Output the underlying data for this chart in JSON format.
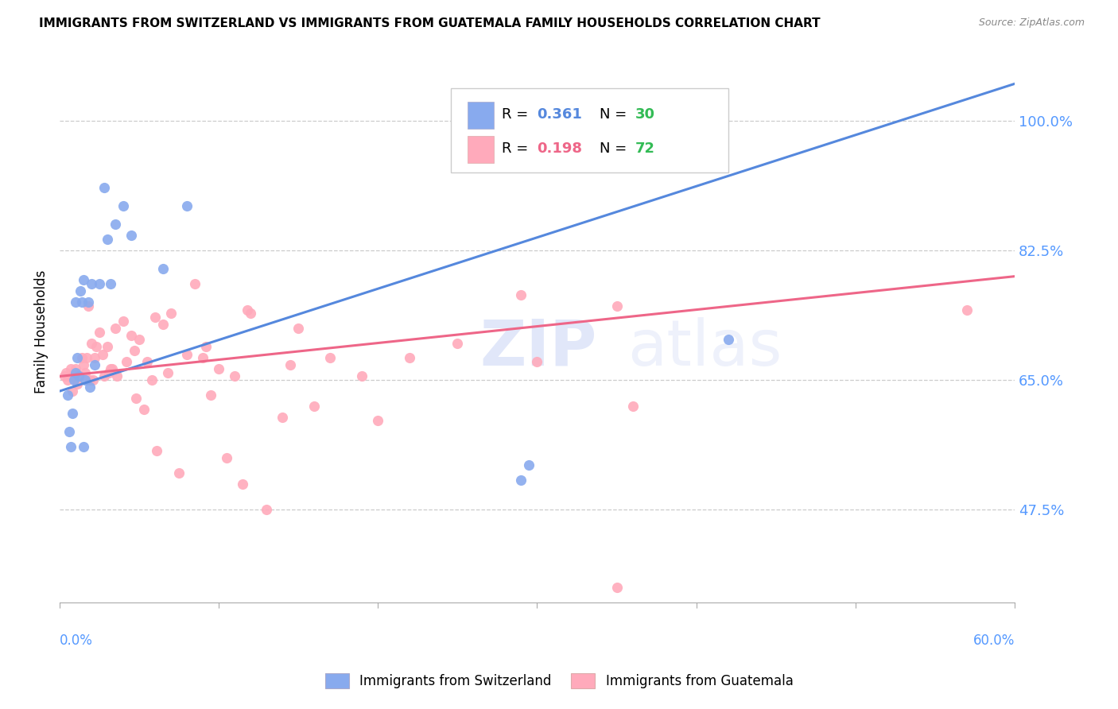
{
  "title": "IMMIGRANTS FROM SWITZERLAND VS IMMIGRANTS FROM GUATEMALA FAMILY HOUSEHOLDS CORRELATION CHART",
  "source": "Source: ZipAtlas.com",
  "ylabel": "Family Households",
  "yticks": [
    47.5,
    65.0,
    82.5,
    100.0
  ],
  "xlim": [
    0.0,
    60.0
  ],
  "ylim": [
    35.0,
    108.0
  ],
  "color_swiss": "#88AAEE",
  "color_swiss_line": "#5588DD",
  "color_guate": "#FFAABB",
  "color_guate_line": "#EE6688",
  "color_axis_labels": "#5599FF",
  "swiss_x": [
    0.5,
    0.6,
    0.7,
    0.8,
    0.9,
    1.0,
    1.0,
    1.1,
    1.2,
    1.3,
    1.4,
    1.5,
    1.5,
    1.6,
    1.8,
    1.9,
    2.0,
    2.2,
    2.5,
    2.8,
    3.0,
    3.2,
    3.5,
    4.0,
    4.5,
    6.5,
    8.0,
    29.0,
    29.5,
    42.0
  ],
  "swiss_y": [
    63.0,
    58.0,
    56.0,
    60.5,
    65.0,
    66.0,
    75.5,
    68.0,
    65.5,
    77.0,
    75.5,
    78.5,
    56.0,
    65.0,
    75.5,
    64.0,
    78.0,
    67.0,
    78.0,
    91.0,
    84.0,
    78.0,
    86.0,
    88.5,
    84.5,
    80.0,
    88.5,
    51.5,
    53.5,
    70.5
  ],
  "guate_x": [
    0.3,
    0.4,
    0.5,
    0.6,
    0.7,
    0.8,
    0.9,
    1.0,
    1.0,
    1.1,
    1.2,
    1.3,
    1.4,
    1.5,
    1.6,
    1.7,
    1.8,
    1.9,
    2.0,
    2.1,
    2.2,
    2.3,
    2.5,
    2.7,
    2.8,
    3.0,
    3.1,
    3.2,
    3.3,
    3.5,
    3.6,
    4.0,
    4.2,
    4.5,
    4.7,
    4.8,
    5.0,
    5.3,
    5.5,
    5.8,
    6.0,
    6.1,
    6.5,
    6.8,
    7.0,
    7.5,
    8.0,
    8.5,
    9.0,
    9.2,
    9.5,
    10.0,
    10.5,
    11.0,
    11.5,
    11.8,
    12.0,
    13.0,
    14.0,
    14.5,
    15.0,
    16.0,
    17.0,
    19.0,
    20.0,
    22.0,
    25.0,
    29.0,
    30.0,
    35.0,
    36.0,
    57.0
  ],
  "guate_y": [
    65.5,
    66.0,
    65.0,
    65.5,
    66.5,
    63.5,
    65.5,
    66.0,
    66.5,
    64.5,
    65.5,
    65.5,
    68.0,
    67.0,
    66.0,
    68.0,
    75.0,
    65.0,
    70.0,
    65.0,
    68.0,
    69.5,
    71.5,
    68.5,
    65.5,
    69.5,
    66.0,
    66.5,
    66.5,
    72.0,
    65.5,
    73.0,
    67.5,
    71.0,
    69.0,
    62.5,
    70.5,
    61.0,
    67.5,
    65.0,
    73.5,
    55.5,
    72.5,
    66.0,
    74.0,
    52.5,
    68.5,
    78.0,
    68.0,
    69.5,
    63.0,
    66.5,
    54.5,
    65.5,
    51.0,
    74.5,
    74.0,
    47.5,
    60.0,
    67.0,
    72.0,
    61.5,
    68.0,
    65.5,
    59.5,
    68.0,
    70.0,
    76.5,
    67.5,
    75.0,
    61.5,
    74.5
  ],
  "guate_one_outlier_x": 35.0,
  "guate_one_outlier_y": 37.0,
  "swiss_line_x": [
    0.0,
    60.0
  ],
  "swiss_line_y": [
    63.5,
    105.0
  ],
  "guate_line_x": [
    0.0,
    60.0
  ],
  "guate_line_y": [
    65.5,
    79.0
  ]
}
